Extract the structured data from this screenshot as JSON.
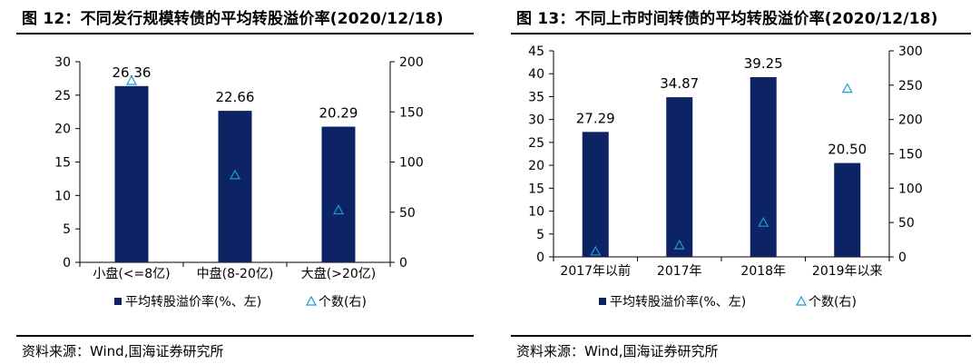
{
  "source_prefix": "资料来源：",
  "panels": [
    {
      "title": "图 12：不同发行规模转债的平均转股溢价率(2020/12/18)",
      "source": "资料来源：Wind,国海证券研究所"
    },
    {
      "title": "图 13：不同上市时间转债的平均转股溢价率(2020/12/18)",
      "source": "资料来源：Wind,国海证券研究所"
    }
  ],
  "colors": {
    "bar": "#0c2463",
    "marker": "#1b9ad6",
    "axis": "#000000"
  },
  "chart_data": [
    {
      "type": "bar",
      "categories": [
        "小盘(<=8亿)",
        "中盘(8-20亿)",
        "大盘(>20亿)"
      ],
      "series": [
        {
          "name": "平均转股溢价率(%、左)",
          "kind": "bar",
          "axis": "left",
          "values": [
            26.36,
            22.66,
            20.29
          ]
        },
        {
          "name": "个数(右)",
          "kind": "marker",
          "marker": "triangle-open",
          "axis": "right",
          "values": [
            181,
            87,
            52
          ]
        }
      ],
      "data_labels": [
        "26.36",
        "22.66",
        "20.29"
      ],
      "ylim": [
        0,
        30
      ],
      "yticks": [
        0,
        5,
        10,
        15,
        20,
        25,
        30
      ],
      "y2lim": [
        0,
        200
      ],
      "y2ticks": [
        0,
        50,
        100,
        150,
        200
      ],
      "legend": {
        "position": "bottom",
        "entries": [
          "平均转股溢价率(%、左)",
          "个数(右)"
        ]
      },
      "grid": false
    },
    {
      "type": "bar",
      "categories": [
        "2017年以前",
        "2017年",
        "2018年",
        "2019年以来"
      ],
      "series": [
        {
          "name": "平均转股溢价率(%、左)",
          "kind": "bar",
          "axis": "left",
          "values": [
            27.29,
            34.87,
            39.25,
            20.5
          ]
        },
        {
          "name": "个数(右)",
          "kind": "marker",
          "marker": "triangle-open",
          "axis": "right",
          "values": [
            8,
            17,
            50,
            245
          ]
        }
      ],
      "data_labels": [
        "27.29",
        "34.87",
        "39.25",
        "20.50"
      ],
      "ylim": [
        0,
        45
      ],
      "yticks": [
        0,
        5,
        10,
        15,
        20,
        25,
        30,
        35,
        40,
        45
      ],
      "y2lim": [
        0,
        300
      ],
      "y2ticks": [
        0,
        50,
        100,
        150,
        200,
        250,
        300
      ],
      "legend": {
        "position": "bottom",
        "entries": [
          "平均转股溢价率(%、左)",
          "个数(右)"
        ]
      },
      "grid": false
    }
  ]
}
